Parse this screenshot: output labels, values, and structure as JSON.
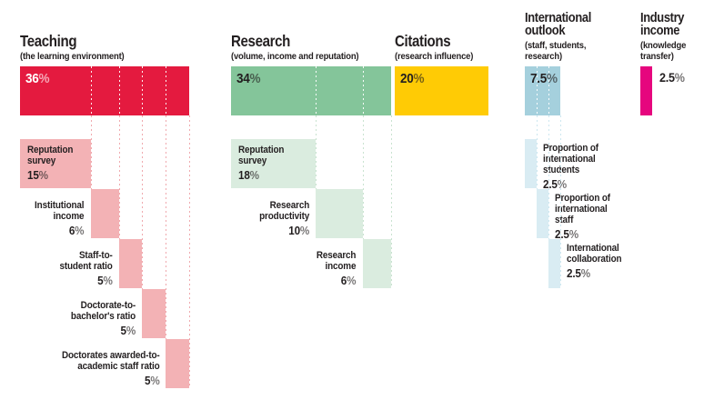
{
  "percent_sign": "%",
  "text_color": "#231f20",
  "chart_data": {
    "type": "bar",
    "unit": "percent",
    "description_layout": "weighted categories with cascading sub-indicator bars",
    "sections": [
      {
        "id": "teaching",
        "title_lines": [
          "Teaching"
        ],
        "subtitle_lines": [
          "(the learning environment)"
        ],
        "weight": 36,
        "weight_text": "36",
        "total_label_placement": "inside",
        "colors": {
          "main": "#e41a3f",
          "sub": "#f3b2b5",
          "line": "#f0a9ae",
          "total_text": "#ffffff"
        },
        "subs": [
          {
            "label_lines": [
              "Reputation",
              "survey"
            ],
            "weight": 15,
            "weight_text": "15",
            "label_side": "inside"
          },
          {
            "label_lines": [
              "Institutional",
              "income"
            ],
            "weight": 6,
            "weight_text": "6",
            "label_side": "left"
          },
          {
            "label_lines": [
              "Staff-to-",
              "student ratio"
            ],
            "weight": 5,
            "weight_text": "5",
            "label_side": "left"
          },
          {
            "label_lines": [
              "Doctorate-to-",
              "bachelor's ratio"
            ],
            "weight": 5,
            "weight_text": "5",
            "label_side": "left"
          },
          {
            "label_lines": [
              "Doctorates awarded-to-",
              "academic staff ratio"
            ],
            "weight": 5,
            "weight_text": "5",
            "label_side": "left"
          }
        ]
      },
      {
        "id": "research",
        "title_lines": [
          "Research"
        ],
        "subtitle_lines": [
          "(volume, income and reputation)"
        ],
        "weight": 34,
        "weight_text": "34",
        "total_label_placement": "inside",
        "colors": {
          "main": "#84c59a",
          "sub": "#daecdf",
          "line": "#c9e3d0",
          "total_text": "#231f20"
        },
        "subs": [
          {
            "label_lines": [
              "Reputation",
              "survey"
            ],
            "weight": 18,
            "weight_text": "18",
            "label_side": "inside"
          },
          {
            "label_lines": [
              "Research",
              "productivity"
            ],
            "weight": 10,
            "weight_text": "10",
            "label_side": "left"
          },
          {
            "label_lines": [
              "Research",
              "income"
            ],
            "weight": 6,
            "weight_text": "6",
            "label_side": "left"
          }
        ]
      },
      {
        "id": "citations",
        "title_lines": [
          "Citations"
        ],
        "subtitle_lines": [
          "(research influence)"
        ],
        "weight": 20,
        "weight_text": "20",
        "total_label_placement": "inside",
        "colors": {
          "main": "#ffcb05",
          "sub": "#ffcb05",
          "line": "#ffcb05",
          "total_text": "#231f20"
        },
        "subs": []
      },
      {
        "id": "international-outlook",
        "title_lines": [
          "International",
          "outlook"
        ],
        "subtitle_lines": [
          "(staff, students,",
          "research)"
        ],
        "weight": 7.5,
        "weight_text": "7.5",
        "total_label_placement": "inside",
        "colors": {
          "main": "#a5d0dd",
          "sub": "#d9ecf3",
          "line": "#cde7f0",
          "total_text": "#231f20"
        },
        "subs": [
          {
            "label_lines": [
              "Proportion of",
              "international",
              "students"
            ],
            "weight": 2.5,
            "weight_text": "2.5",
            "label_side": "right"
          },
          {
            "label_lines": [
              "Proportion of",
              "international",
              "staff"
            ],
            "weight": 2.5,
            "weight_text": "2.5",
            "label_side": "right"
          },
          {
            "label_lines": [
              "International",
              "collaboration"
            ],
            "weight": 2.5,
            "weight_text": "2.5",
            "label_side": "right"
          }
        ]
      },
      {
        "id": "industry-income",
        "title_lines": [
          "Industry",
          "income"
        ],
        "subtitle_lines": [
          "(knowledge",
          "transfer)"
        ],
        "weight": 2.5,
        "weight_text": "2.5",
        "total_label_placement": "right",
        "colors": {
          "main": "#e6067e",
          "sub": "#e6067e",
          "line": "#e6067e",
          "total_text": "#231f20"
        },
        "subs": []
      }
    ]
  }
}
